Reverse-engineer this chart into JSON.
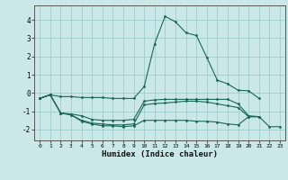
{
  "xlabel": "Humidex (Indice chaleur)",
  "bg_color": "#cbe8e8",
  "grid_color": "#a0cccc",
  "line_color": "#1a6655",
  "xlim": [
    -0.5,
    23.5
  ],
  "ylim": [
    -2.6,
    4.8
  ],
  "yticks": [
    -2,
    -1,
    0,
    1,
    2,
    3,
    4
  ],
  "xticks": [
    0,
    1,
    2,
    3,
    4,
    5,
    6,
    7,
    8,
    9,
    10,
    11,
    12,
    13,
    14,
    15,
    16,
    17,
    18,
    19,
    20,
    21,
    22,
    23
  ],
  "lines": [
    {
      "x": [
        0,
        1,
        2,
        3,
        4,
        5,
        6,
        7,
        8,
        9,
        10,
        11,
        12,
        13,
        14,
        15,
        16,
        17,
        18,
        19,
        20,
        21
      ],
      "y": [
        -0.3,
        -0.1,
        -0.2,
        -0.2,
        -0.25,
        -0.25,
        -0.25,
        -0.3,
        -0.3,
        -0.3,
        0.35,
        2.7,
        4.2,
        3.9,
        3.3,
        3.15,
        1.95,
        0.7,
        0.5,
        0.15,
        0.12,
        -0.3
      ]
    },
    {
      "x": [
        0,
        1,
        2,
        3,
        4,
        5,
        6,
        7,
        8,
        9,
        10,
        11,
        12,
        13,
        14,
        15,
        16,
        17,
        18,
        19,
        20,
        21
      ],
      "y": [
        -0.3,
        -0.1,
        -1.1,
        -1.15,
        -1.25,
        -1.45,
        -1.5,
        -1.5,
        -1.5,
        -1.45,
        -0.45,
        -0.38,
        -0.35,
        -0.35,
        -0.35,
        -0.35,
        -0.35,
        -0.35,
        -0.35,
        -0.6,
        -1.25,
        -1.3
      ]
    },
    {
      "x": [
        0,
        1,
        2,
        3,
        4,
        5,
        6,
        7,
        8,
        9,
        10,
        11,
        12,
        13,
        14,
        15,
        16,
        17,
        18,
        19,
        20,
        21
      ],
      "y": [
        -0.3,
        -0.1,
        -1.1,
        -1.2,
        -1.5,
        -1.65,
        -1.7,
        -1.75,
        -1.75,
        -1.7,
        -0.65,
        -0.58,
        -0.55,
        -0.5,
        -0.45,
        -0.45,
        -0.5,
        -0.6,
        -0.7,
        -0.8,
        -1.3,
        -1.3
      ]
    },
    {
      "x": [
        0,
        1,
        2,
        3,
        4,
        5,
        6,
        7,
        8,
        9,
        10,
        11,
        12,
        13,
        14,
        15,
        16,
        17,
        18,
        19,
        20,
        21,
        22,
        23
      ],
      "y": [
        -0.3,
        -0.1,
        -1.1,
        -1.2,
        -1.55,
        -1.7,
        -1.8,
        -1.8,
        -1.85,
        -1.8,
        -1.5,
        -1.5,
        -1.5,
        -1.5,
        -1.5,
        -1.55,
        -1.55,
        -1.6,
        -1.7,
        -1.75,
        -1.3,
        -1.3,
        -1.85,
        -1.85
      ]
    }
  ]
}
